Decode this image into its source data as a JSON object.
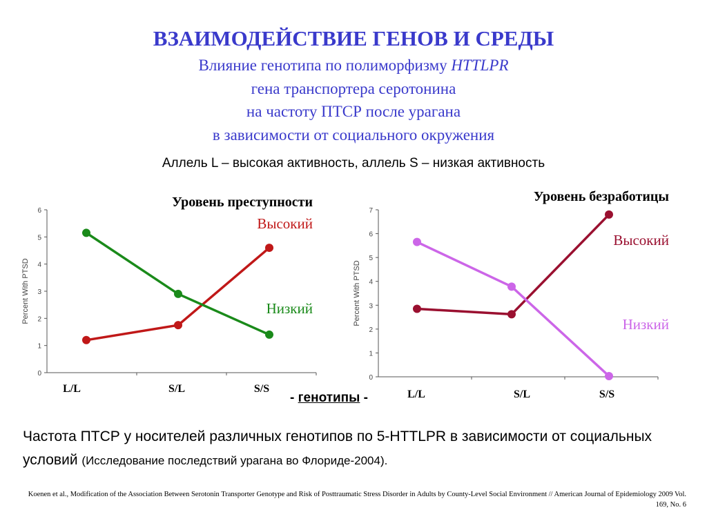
{
  "title": "ВЗАИМОДЕЙСТВИЕ ГЕНОВ И СРЕДЫ",
  "subtitle_lines": [
    {
      "text": "Влияние генотипа по полиморфизму ",
      "italic": "HTTLPR"
    },
    {
      "text": "гена транспортера серотонина"
    },
    {
      "text": "на частоту ПТСР после урагана"
    },
    {
      "text": "в зависимости от социального окружения"
    }
  ],
  "allele_note": "Аллель L – высокая активность, аллель S – низкая активность",
  "genotypes_label": {
    "prefix": "- ",
    "word": "генотипы",
    "suffix": " -"
  },
  "summary": {
    "main": "Частота ПТСР у носителей различных генотипов по 5-HTTLPR в зависимости от социальных условий",
    "note": "(Исследование последствий урагана во Флориде-2004)."
  },
  "reference": "Koenen et al., Modification of the Association Between Serotonin Transporter Genotype and Risk of Posttraumatic Stress Disorder in Adults by County-Level Social Environment // American Journal of Epidemiology 2009 Vol. 169, No. 6",
  "chart_data": [
    {
      "type": "line",
      "title": "Уровень преступности",
      "ylabel": "Percent With PTSD",
      "categories": [
        "L/L",
        "S/L",
        "S/S"
      ],
      "ylim": [
        0,
        6
      ],
      "yticks": [
        "0",
        "1",
        "2",
        "3",
        "4",
        "5",
        "6"
      ],
      "grid": false,
      "series": [
        {
          "name": "Высокий",
          "color": "#c01818",
          "values": [
            1.2,
            1.75,
            4.6
          ]
        },
        {
          "name": "Низкий",
          "color": "#1a8a1a",
          "values": [
            5.15,
            2.9,
            1.4
          ]
        }
      ]
    },
    {
      "type": "line",
      "title": "Уровень безработицы",
      "ylabel": "Percent With PTSD",
      "categories": [
        "L/L",
        "S/L",
        "S/S"
      ],
      "ylim": [
        0,
        7
      ],
      "yticks": [
        "0",
        "1",
        "2",
        "3",
        "4",
        "5",
        "6",
        "7"
      ],
      "grid": false,
      "series": [
        {
          "name": "Высокий",
          "color": "#9a1030",
          "values": [
            2.85,
            2.62,
            6.8
          ]
        },
        {
          "name": "Низкий",
          "color": "#cc66e8",
          "values": [
            5.65,
            3.78,
            0.03
          ]
        }
      ]
    }
  ]
}
